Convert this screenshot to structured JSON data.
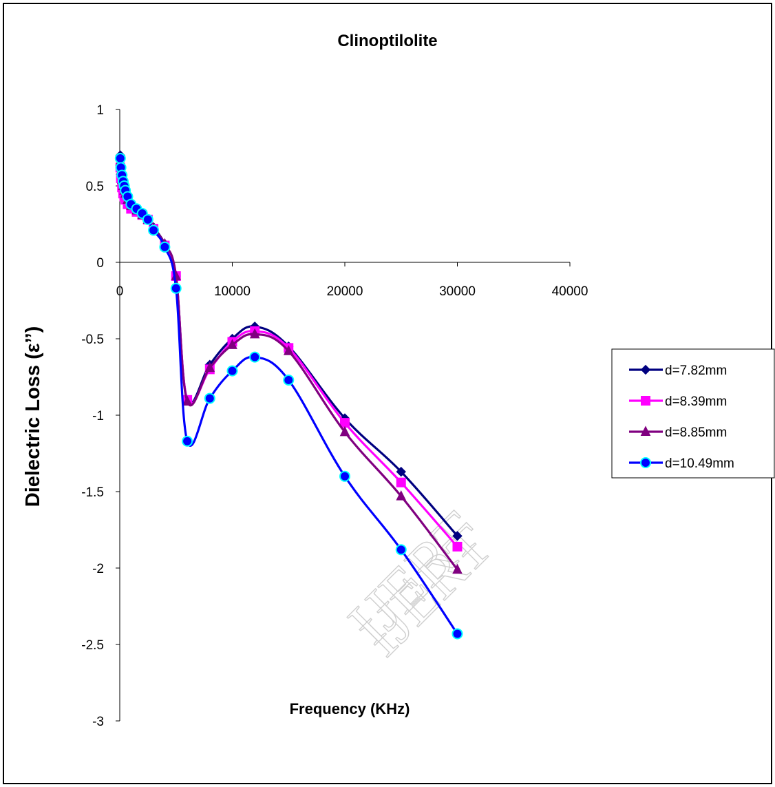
{
  "chart_data": {
    "type": "line",
    "title": "Clinoptilolite",
    "xlabel": "Frequency (KHz)",
    "ylabel": "Dielectric Loss (ε’’)",
    "xlim": [
      0,
      40000
    ],
    "ylim": [
      -3,
      1
    ],
    "x_ticks": [
      "0",
      "10000",
      "20000",
      "30000",
      "40000"
    ],
    "y_ticks": [
      "1",
      "0.5",
      "0",
      "-0.5",
      "-1",
      "-1.5",
      "-2",
      "-2.5",
      "-3"
    ],
    "grid": false,
    "legend_position": "right",
    "watermark": "IJERT",
    "x": [
      50,
      100,
      200,
      300,
      400,
      500,
      700,
      1000,
      1500,
      2000,
      2500,
      3000,
      4000,
      5000,
      6000,
      8000,
      10000,
      12000,
      15000,
      20000,
      25000,
      30000
    ],
    "series": [
      {
        "name": "d=7.82mm",
        "color": "#000080",
        "marker": "diamond",
        "values": [
          0.7,
          0.62,
          0.55,
          0.51,
          0.48,
          0.46,
          0.42,
          0.37,
          0.34,
          0.31,
          0.28,
          0.23,
          0.12,
          -0.09,
          -0.9,
          -0.67,
          -0.5,
          -0.42,
          -0.55,
          -1.02,
          -1.37,
          -1.79
        ]
      },
      {
        "name": "d=8.39mm",
        "color": "#FF00FF",
        "marker": "square",
        "values": [
          0.62,
          0.55,
          0.49,
          0.45,
          0.43,
          0.41,
          0.38,
          0.35,
          0.33,
          0.31,
          0.28,
          0.22,
          0.11,
          -0.09,
          -0.9,
          -0.7,
          -0.52,
          -0.45,
          -0.56,
          -1.05,
          -1.44,
          -1.86
        ]
      },
      {
        "name": "d=8.85mm",
        "color": "#800080",
        "marker": "triangle",
        "values": [
          0.66,
          0.6,
          0.54,
          0.5,
          0.47,
          0.45,
          0.41,
          0.37,
          0.34,
          0.31,
          0.28,
          0.22,
          0.12,
          -0.09,
          -0.91,
          -0.69,
          -0.54,
          -0.47,
          -0.58,
          -1.11,
          -1.53,
          -2.01
        ]
      },
      {
        "name": "d=10.49mm",
        "color": "#0000FF",
        "marker": "circle",
        "markerFill": "#00FFFF",
        "values": [
          0.68,
          0.62,
          0.57,
          0.53,
          0.5,
          0.47,
          0.43,
          0.38,
          0.35,
          0.32,
          0.28,
          0.21,
          0.1,
          -0.17,
          -1.17,
          -0.89,
          -0.71,
          -0.62,
          -0.77,
          -1.4,
          -1.88,
          -2.43
        ]
      }
    ]
  }
}
